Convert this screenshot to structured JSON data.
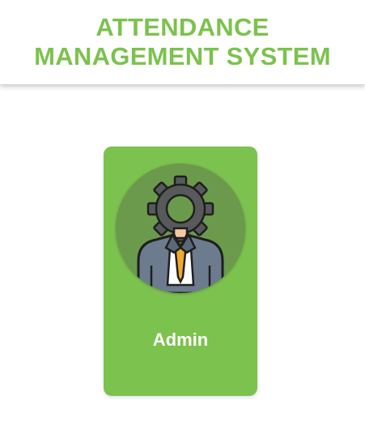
{
  "header": {
    "title_line1": "ATTENDANCE",
    "title_line2": "MANAGEMENT SYSTEM"
  },
  "cards": [
    {
      "label": "Admin",
      "icon": "admin-gear-person-icon"
    }
  ],
  "colors": {
    "accent": "#7cc24e",
    "avatar_bg": "#6b9a4c",
    "gear": "#58595b",
    "suit": "#6d7b8e",
    "tie": "#f0a830"
  }
}
